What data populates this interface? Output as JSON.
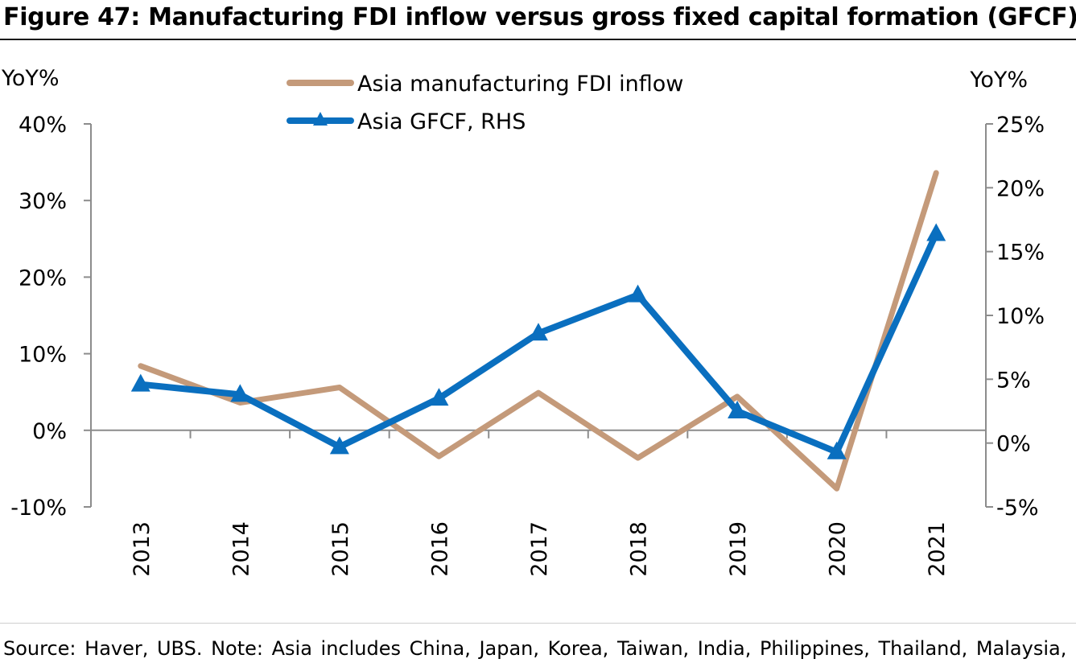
{
  "title": "Figure 47: Manufacturing FDI inflow versus gross fixed capital formation (GFCF)",
  "source": "Source: Haver, UBS. Note: Asia includes China, Japan, Korea, Taiwan, India, Philippines, Thailand, Malaysia,",
  "colors": {
    "fdi": "#c49a7a",
    "gfcf": "#0a6fbf",
    "axis": "#8c8c8c"
  },
  "chart_data": {
    "type": "line",
    "categories": [
      "2013",
      "2014",
      "2015",
      "2016",
      "2017",
      "2018",
      "2019",
      "2020",
      "2021"
    ],
    "y_left": {
      "label": "YoY%",
      "lim": [
        -10,
        40
      ],
      "ticks": [
        "-10%",
        "0%",
        "10%",
        "20%",
        "30%",
        "40%"
      ],
      "tick_values": [
        -10,
        0,
        10,
        20,
        30,
        40
      ]
    },
    "y_right": {
      "label": "YoY%",
      "lim": [
        -5,
        25
      ],
      "ticks": [
        "-5%",
        "0%",
        "5%",
        "10%",
        "15%",
        "20%",
        "25%"
      ],
      "tick_values": [
        -5,
        0,
        5,
        10,
        15,
        20,
        25
      ]
    },
    "series": [
      {
        "name": "Asia manufacturing FDI inflow",
        "axis": "left",
        "marker": "none",
        "values": [
          8.4,
          3.6,
          5.6,
          -3.4,
          4.9,
          -3.6,
          4.4,
          -7.6,
          33.6
        ]
      },
      {
        "name": "Asia GFCF, RHS",
        "axis": "right",
        "marker": "triangle",
        "values": [
          4.6,
          3.8,
          -0.3,
          3.5,
          8.6,
          11.6,
          2.5,
          -0.7,
          16.4
        ]
      }
    ],
    "grid": false,
    "legend": "top-center"
  }
}
